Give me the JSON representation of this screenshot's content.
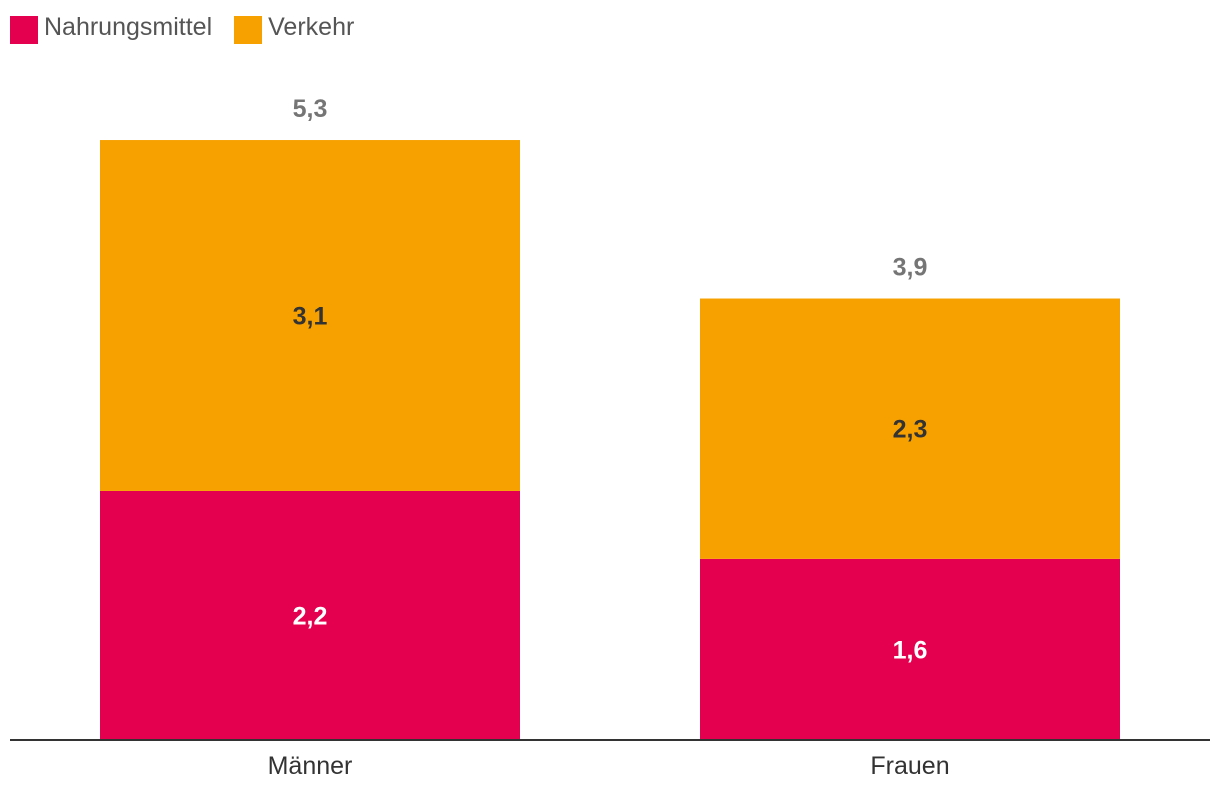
{
  "chart_data": {
    "type": "bar",
    "stacked": true,
    "categories": [
      "Männer",
      "Frauen"
    ],
    "series": [
      {
        "name": "Nahrungsmittel",
        "color": "#e5004f",
        "values": [
          2.2,
          1.6
        ],
        "labels": [
          "2,2",
          "1,6"
        ]
      },
      {
        "name": "Verkehr",
        "color": "#f7a100",
        "values": [
          3.1,
          2.3
        ],
        "labels": [
          "3,1",
          "2,3"
        ]
      }
    ],
    "totals": [
      5.3,
      3.9
    ],
    "total_labels": [
      "5,3",
      "3,9"
    ],
    "legend_position": "top-left",
    "grid": false
  }
}
